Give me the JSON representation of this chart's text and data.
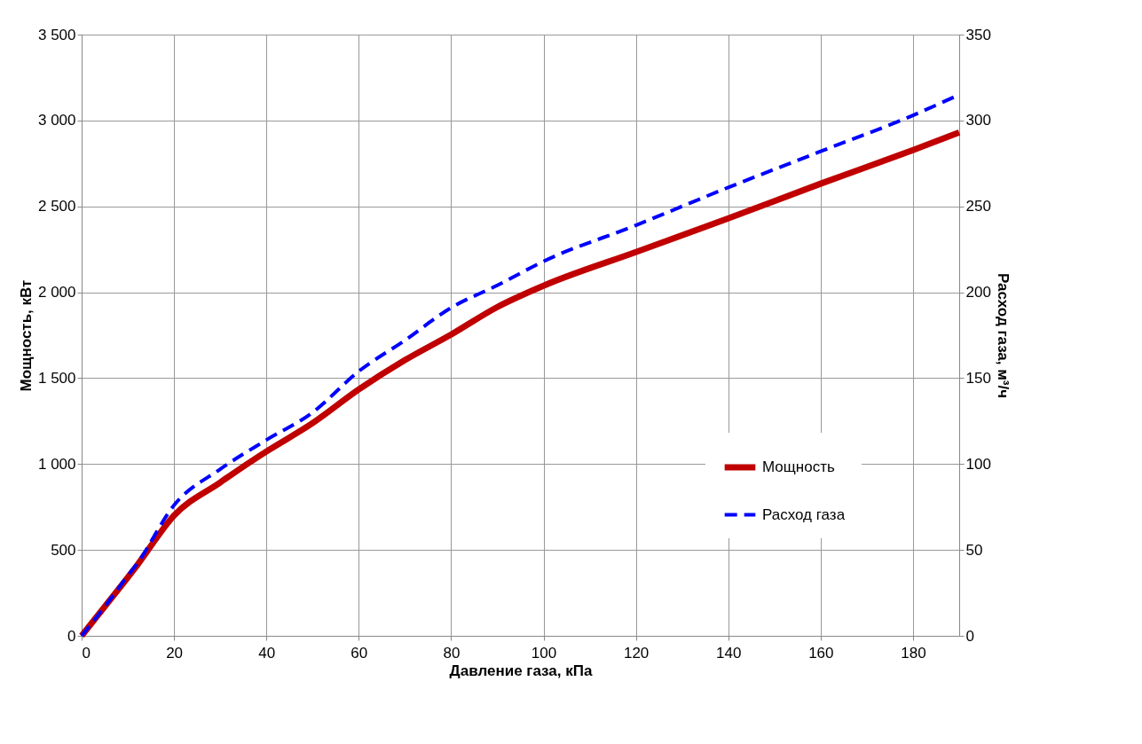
{
  "chart_data": {
    "type": "line",
    "xlabel": "Давление газа, кПа",
    "ylabel": "Мощность, кВт",
    "y2label": "Расход газа, м³/ч",
    "x": [
      0,
      5,
      10,
      12,
      20,
      30,
      40,
      50,
      60,
      70,
      80,
      90,
      100,
      120,
      140,
      160,
      180,
      190
    ],
    "series": [
      {
        "name": "Мощность",
        "color": "#c00000",
        "line_style": "solid",
        "values": [
          0,
          170,
          340,
          410,
          700,
          893,
          1073,
          1238,
          1434,
          1605,
          1754,
          1914,
          2038,
          2234,
          2430,
          2632,
          2828,
          2930
        ]
      },
      {
        "name": "Расход газа",
        "color": "#0000ff",
        "line_style": "dashed",
        "axis": "y2",
        "values": [
          0,
          17,
          35,
          42,
          76,
          97,
          114,
          130,
          154,
          172,
          191,
          204,
          218,
          239,
          261,
          282,
          303,
          315
        ]
      }
    ],
    "xlim": [
      0,
      190
    ],
    "xticks": [
      0,
      20,
      40,
      60,
      80,
      100,
      120,
      140,
      160,
      180
    ],
    "ylim": [
      0,
      3500
    ],
    "yticks": [
      0,
      500,
      {
        "value": 1000,
        "label": "1 000"
      },
      {
        "value": 1500,
        "label": "1 500"
      },
      {
        "value": 2000,
        "label": "2 000"
      },
      {
        "value": 2500,
        "label": "2 500"
      },
      {
        "value": 3000,
        "label": "3 000"
      },
      {
        "value": 3500,
        "label": "3 500"
      }
    ],
    "y2lim": [
      0,
      350
    ],
    "y2ticks": [
      0,
      50,
      100,
      150,
      200,
      250,
      300,
      350
    ],
    "grid": true,
    "legend": "bottom right",
    "marker": "none"
  }
}
